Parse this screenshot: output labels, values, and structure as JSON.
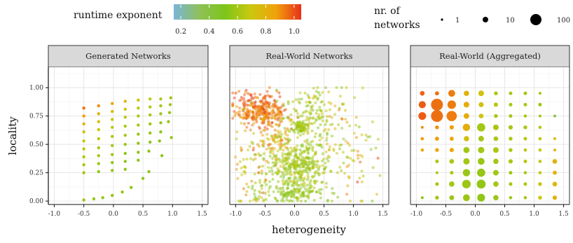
{
  "legend": {
    "color_title": "runtime exponent",
    "color_ticks": [
      "0.2",
      "0.4",
      "0.6",
      "0.8",
      "1.0"
    ],
    "color_range": [
      0.15,
      1.05
    ],
    "color_stops": [
      "#7ab5d9",
      "#8fc05a",
      "#7dc51a",
      "#c9c80f",
      "#f0a30a",
      "#e8301a"
    ],
    "size_title": [
      "nr. of",
      "networks"
    ],
    "size_ticks": [
      "1",
      "10",
      "100"
    ]
  },
  "axes": {
    "xlabel": "heterogeneity",
    "ylabel": "locality",
    "xticks": [
      "-1.0",
      "-0.5",
      "0.0",
      "0.5",
      "1.0",
      "1.5"
    ],
    "yticks": [
      "0.00",
      "0.25",
      "0.50",
      "0.75",
      "1.00"
    ],
    "xlim": [
      -1.1,
      1.6
    ],
    "ylim": [
      -0.03,
      1.18
    ]
  },
  "chart_data": [
    {
      "type": "scatter",
      "panel": "Generated Networks",
      "xlabel": "heterogeneity",
      "ylabel": "locality",
      "points": [
        {
          "x": -0.5,
          "y": 0.82,
          "c": 0.95
        },
        {
          "x": -0.25,
          "y": 0.84,
          "c": 0.9
        },
        {
          "x": -0.02,
          "y": 0.86,
          "c": 0.85
        },
        {
          "x": 0.2,
          "y": 0.88,
          "c": 0.78
        },
        {
          "x": 0.42,
          "y": 0.89,
          "c": 0.72
        },
        {
          "x": 0.62,
          "y": 0.9,
          "c": 0.66
        },
        {
          "x": 0.8,
          "y": 0.9,
          "c": 0.62
        },
        {
          "x": 0.97,
          "y": 0.91,
          "c": 0.6
        },
        {
          "x": -0.5,
          "y": 0.75,
          "c": 0.88
        },
        {
          "x": -0.25,
          "y": 0.77,
          "c": 0.82
        },
        {
          "x": -0.02,
          "y": 0.79,
          "c": 0.76
        },
        {
          "x": 0.2,
          "y": 0.81,
          "c": 0.7
        },
        {
          "x": 0.42,
          "y": 0.82,
          "c": 0.66
        },
        {
          "x": 0.62,
          "y": 0.83,
          "c": 0.63
        },
        {
          "x": 0.8,
          "y": 0.84,
          "c": 0.6
        },
        {
          "x": 0.96,
          "y": 0.85,
          "c": 0.58
        },
        {
          "x": -0.5,
          "y": 0.68,
          "c": 0.8
        },
        {
          "x": -0.25,
          "y": 0.7,
          "c": 0.75
        },
        {
          "x": -0.02,
          "y": 0.72,
          "c": 0.7
        },
        {
          "x": 0.2,
          "y": 0.74,
          "c": 0.66
        },
        {
          "x": 0.42,
          "y": 0.75,
          "c": 0.63
        },
        {
          "x": 0.62,
          "y": 0.76,
          "c": 0.6
        },
        {
          "x": 0.8,
          "y": 0.77,
          "c": 0.58
        },
        {
          "x": 0.95,
          "y": 0.78,
          "c": 0.57
        },
        {
          "x": -0.5,
          "y": 0.61,
          "c": 0.74
        },
        {
          "x": -0.25,
          "y": 0.63,
          "c": 0.7
        },
        {
          "x": -0.02,
          "y": 0.65,
          "c": 0.66
        },
        {
          "x": 0.2,
          "y": 0.66,
          "c": 0.62
        },
        {
          "x": 0.42,
          "y": 0.67,
          "c": 0.6
        },
        {
          "x": 0.62,
          "y": 0.68,
          "c": 0.58
        },
        {
          "x": 0.8,
          "y": 0.69,
          "c": 0.56
        },
        {
          "x": 0.93,
          "y": 0.7,
          "c": 0.56
        },
        {
          "x": -0.5,
          "y": 0.53,
          "c": 0.7
        },
        {
          "x": -0.25,
          "y": 0.55,
          "c": 0.66
        },
        {
          "x": -0.02,
          "y": 0.57,
          "c": 0.62
        },
        {
          "x": 0.2,
          "y": 0.58,
          "c": 0.6
        },
        {
          "x": 0.42,
          "y": 0.59,
          "c": 0.58
        },
        {
          "x": 0.62,
          "y": 0.6,
          "c": 0.56
        },
        {
          "x": 0.8,
          "y": 0.61,
          "c": 0.55
        },
        {
          "x": -0.5,
          "y": 0.46,
          "c": 0.66
        },
        {
          "x": -0.25,
          "y": 0.47,
          "c": 0.63
        },
        {
          "x": -0.02,
          "y": 0.49,
          "c": 0.6
        },
        {
          "x": 0.2,
          "y": 0.5,
          "c": 0.58
        },
        {
          "x": 0.42,
          "y": 0.51,
          "c": 0.56
        },
        {
          "x": 0.62,
          "y": 0.52,
          "c": 0.55
        },
        {
          "x": 0.78,
          "y": 0.53,
          "c": 0.55
        },
        {
          "x": -0.5,
          "y": 0.39,
          "c": 0.63
        },
        {
          "x": -0.25,
          "y": 0.4,
          "c": 0.6
        },
        {
          "x": -0.02,
          "y": 0.41,
          "c": 0.58
        },
        {
          "x": 0.2,
          "y": 0.42,
          "c": 0.56
        },
        {
          "x": 0.42,
          "y": 0.43,
          "c": 0.55
        },
        {
          "x": 0.6,
          "y": 0.44,
          "c": 0.55
        },
        {
          "x": -0.5,
          "y": 0.32,
          "c": 0.6
        },
        {
          "x": -0.25,
          "y": 0.33,
          "c": 0.58
        },
        {
          "x": -0.02,
          "y": 0.34,
          "c": 0.56
        },
        {
          "x": 0.2,
          "y": 0.35,
          "c": 0.55
        },
        {
          "x": 0.42,
          "y": 0.36,
          "c": 0.55
        },
        {
          "x": -0.5,
          "y": 0.25,
          "c": 0.58
        },
        {
          "x": -0.25,
          "y": 0.26,
          "c": 0.56
        },
        {
          "x": -0.02,
          "y": 0.27,
          "c": 0.55
        },
        {
          "x": 0.2,
          "y": 0.28,
          "c": 0.55
        },
        {
          "x": 0.98,
          "y": 0.56,
          "c": 0.56
        },
        {
          "x": 0.82,
          "y": 0.4,
          "c": 0.55
        },
        {
          "x": 0.6,
          "y": 0.26,
          "c": 0.55
        },
        {
          "x": 0.5,
          "y": 0.2,
          "c": 0.55
        },
        {
          "x": 0.3,
          "y": 0.12,
          "c": 0.55
        },
        {
          "x": 0.15,
          "y": 0.08,
          "c": 0.55
        },
        {
          "x": -0.02,
          "y": 0.05,
          "c": 0.56
        },
        {
          "x": -0.18,
          "y": 0.03,
          "c": 0.56
        },
        {
          "x": -0.33,
          "y": 0.02,
          "c": 0.56
        },
        {
          "x": -0.5,
          "y": 0.01,
          "c": 0.57
        }
      ]
    },
    {
      "type": "scatter",
      "panel": "Real-World Networks",
      "xlabel": "heterogeneity",
      "ylabel": "locality",
      "clusters": [
        {
          "cx": -0.55,
          "cy": 0.78,
          "sx": 0.22,
          "sy": 0.06,
          "n": 230,
          "c": 0.93,
          "cj": 0.05
        },
        {
          "cx": -0.7,
          "cy": 0.88,
          "sx": 0.2,
          "sy": 0.05,
          "n": 70,
          "c": 0.97,
          "cj": 0.04
        },
        {
          "cx": 0.1,
          "cy": 0.65,
          "sx": 0.06,
          "sy": 0.025,
          "n": 70,
          "c": 0.6,
          "cj": 0.03
        },
        {
          "cx": -0.35,
          "cy": 0.55,
          "sx": 0.18,
          "sy": 0.12,
          "n": 110,
          "c": 0.82,
          "cj": 0.1
        },
        {
          "cx": 0.05,
          "cy": 0.3,
          "sx": 0.26,
          "sy": 0.12,
          "n": 330,
          "c": 0.6,
          "cj": 0.07
        },
        {
          "cx": -0.05,
          "cy": 0.08,
          "sx": 0.3,
          "sy": 0.05,
          "n": 130,
          "c": 0.56,
          "cj": 0.05
        },
        {
          "cx": 0.35,
          "cy": 0.6,
          "sx": 0.3,
          "sy": 0.2,
          "n": 140,
          "c": 0.62,
          "cj": 0.1
        },
        {
          "cx": 1.0,
          "cy": 0.4,
          "sx": 0.25,
          "sy": 0.25,
          "n": 70,
          "c": 0.72,
          "cj": 0.15
        },
        {
          "cx": -0.75,
          "cy": 0.3,
          "sx": 0.15,
          "sy": 0.2,
          "n": 60,
          "c": 0.74,
          "cj": 0.12
        },
        {
          "cx": 0.2,
          "cy": 0.83,
          "sx": 0.25,
          "sy": 0.08,
          "n": 70,
          "c": 0.6,
          "cj": 0.1
        }
      ],
      "seed": 12345
    },
    {
      "type": "scatter",
      "panel": "Real-World (Aggregated)",
      "xlabel": "heterogeneity",
      "ylabel": "locality",
      "x_bins": [
        -0.9,
        -0.65,
        -0.4,
        -0.15,
        0.1,
        0.35,
        0.6,
        0.85,
        1.1,
        1.35
      ],
      "y_bins": [
        0.03,
        0.15,
        0.25,
        0.35,
        0.45,
        0.55,
        0.65,
        0.75,
        0.85,
        0.95
      ],
      "cells": [
        [
          1,
          0.55
        ],
        [
          4,
          0.6
        ],
        [
          9,
          0.58
        ],
        [
          25,
          0.58
        ],
        [
          35,
          0.56
        ],
        [
          12,
          0.58
        ],
        [
          2,
          0.58
        ],
        [
          2,
          0.6
        ],
        [
          4,
          0.7
        ],
        [
          6,
          0.82
        ],
        [
          0,
          0
        ],
        [
          3,
          0.6
        ],
        [
          12,
          0.6
        ],
        [
          45,
          0.58
        ],
        [
          50,
          0.56
        ],
        [
          12,
          0.6
        ],
        [
          3,
          0.6
        ],
        [
          3,
          0.65
        ],
        [
          4,
          0.7
        ],
        [
          8,
          0.78
        ],
        [
          0,
          0
        ],
        [
          1,
          0.62
        ],
        [
          3,
          0.62
        ],
        [
          30,
          0.58
        ],
        [
          40,
          0.57
        ],
        [
          14,
          0.6
        ],
        [
          3,
          0.6
        ],
        [
          2,
          0.62
        ],
        [
          2,
          0.7
        ],
        [
          5,
          0.78
        ],
        [
          0,
          0
        ],
        [
          3,
          0.62
        ],
        [
          8,
          0.62
        ],
        [
          20,
          0.6
        ],
        [
          25,
          0.58
        ],
        [
          12,
          0.6
        ],
        [
          6,
          0.62
        ],
        [
          3,
          0.65
        ],
        [
          2,
          0.68
        ],
        [
          8,
          0.8
        ],
        [
          2,
          0.85
        ],
        [
          4,
          0.85
        ],
        [
          6,
          0.85
        ],
        [
          18,
          0.6
        ],
        [
          20,
          0.6
        ],
        [
          14,
          0.62
        ],
        [
          4,
          0.62
        ],
        [
          2,
          0.65
        ],
        [
          2,
          0.7
        ],
        [
          1,
          0.8
        ],
        [
          2,
          0.88
        ],
        [
          5,
          0.88
        ],
        [
          5,
          0.85
        ],
        [
          12,
          0.75
        ],
        [
          14,
          0.6
        ],
        [
          8,
          0.62
        ],
        [
          4,
          0.62
        ],
        [
          3,
          0.65
        ],
        [
          2,
          0.68
        ],
        [
          1,
          0.75
        ],
        [
          1,
          0.9
        ],
        [
          4,
          0.9
        ],
        [
          6,
          0.88
        ],
        [
          30,
          0.82
        ],
        [
          40,
          0.6
        ],
        [
          14,
          0.62
        ],
        [
          6,
          0.6
        ],
        [
          4,
          0.62
        ],
        [
          2,
          0.65
        ],
        [
          0,
          0
        ],
        [
          35,
          0.98
        ],
        [
          100,
          0.95
        ],
        [
          70,
          0.93
        ],
        [
          14,
          0.82
        ],
        [
          8,
          0.7
        ],
        [
          4,
          0.62
        ],
        [
          3,
          0.6
        ],
        [
          2,
          0.62
        ],
        [
          1,
          0.6
        ],
        [
          1,
          0.35
        ],
        [
          28,
          0.98
        ],
        [
          100,
          0.95
        ],
        [
          45,
          0.93
        ],
        [
          15,
          0.83
        ],
        [
          10,
          0.72
        ],
        [
          6,
          0.65
        ],
        [
          3,
          0.6
        ],
        [
          3,
          0.62
        ],
        [
          3,
          0.58
        ],
        [
          0,
          0
        ],
        [
          8,
          0.97
        ],
        [
          5,
          0.95
        ],
        [
          25,
          0.93
        ],
        [
          12,
          0.8
        ],
        [
          14,
          0.72
        ],
        [
          4,
          0.62
        ],
        [
          3,
          0.6
        ],
        [
          3,
          0.6
        ],
        [
          1,
          0.6
        ],
        [
          0,
          0
        ]
      ]
    }
  ],
  "panels": [
    "Generated Networks",
    "Real-World Networks",
    "Real-World (Aggregated)"
  ]
}
